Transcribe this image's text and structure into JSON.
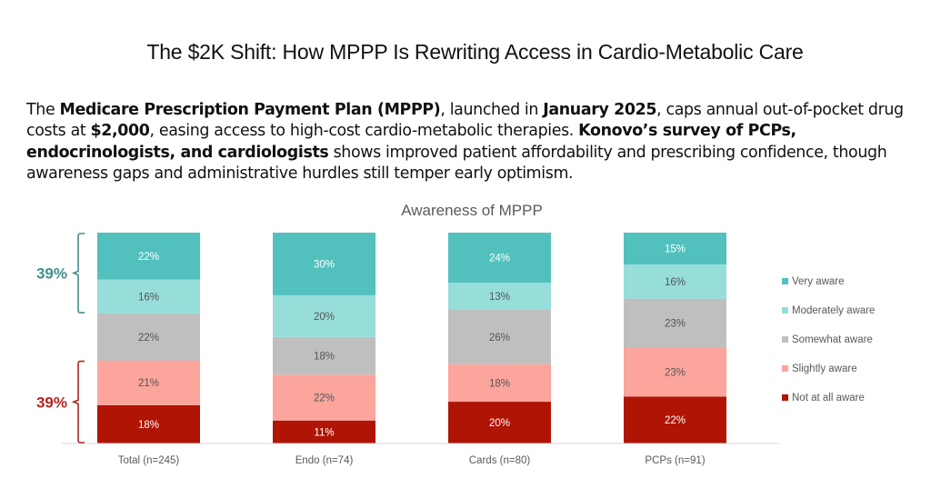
{
  "page": {
    "title": "The $2K Shift: How MPPP Is Rewriting Access in Cardio-Metabolic Care",
    "intro_segments": [
      {
        "text": "The ",
        "bold": false
      },
      {
        "text": "Medicare Prescription Payment Plan (MPPP)",
        "bold": true
      },
      {
        "text": ", launched in ",
        "bold": false
      },
      {
        "text": "January 2025",
        "bold": true
      },
      {
        "text": ", caps annual out-of-pocket drug costs at ",
        "bold": false
      },
      {
        "text": "$2,000",
        "bold": true
      },
      {
        "text": ", easing access to high-cost cardio-metabolic therapies. ",
        "bold": false
      },
      {
        "text": "Konovo’s survey of PCPs, endocrinologists, and cardiologists",
        "bold": true
      },
      {
        "text": " shows improved patient affordability and prescribing confidence, though awareness gaps and administrative hurdles still temper early optimism.",
        "bold": false
      }
    ]
  },
  "chart_data": {
    "type": "bar",
    "stacked": true,
    "normalized_percent": true,
    "title": "Awareness of MPPP",
    "xlabel": "",
    "ylabel": "",
    "ylim": [
      0,
      100
    ],
    "grid": false,
    "legend_position": "right",
    "categories": [
      "Total (n=245)",
      "Endo (n=74)",
      "Cards (n=80)",
      "PCPs (n=91)"
    ],
    "series": [
      {
        "name": "Not at all aware",
        "color": "#B01404",
        "label_color": "#ffffff",
        "values": [
          18,
          11,
          20,
          22
        ]
      },
      {
        "name": "Slightly aware",
        "color": "#FBA59C",
        "label_color": "#555555",
        "values": [
          21,
          22,
          18,
          23
        ]
      },
      {
        "name": "Somewhat aware",
        "color": "#BFBFBF",
        "label_color": "#555555",
        "values": [
          22,
          18,
          26,
          23
        ]
      },
      {
        "name": "Moderately aware",
        "color": "#97DDDA",
        "label_color": "#555555",
        "values": [
          16,
          20,
          13,
          16
        ]
      },
      {
        "name": "Very aware",
        "color": "#52C1BE",
        "label_color": "#ffffff",
        "values": [
          22,
          30,
          24,
          15
        ]
      }
    ],
    "legend_order": [
      "Very aware",
      "Moderately aware",
      "Somewhat aware",
      "Slightly aware",
      "Not at all aware"
    ],
    "value_suffix": "%",
    "annotations": [
      {
        "text": "39%",
        "color": "#3F8F8D",
        "applies_to": "Total (n=245)",
        "series_span": [
          "Moderately aware",
          "Very aware"
        ],
        "meaning": "Very + Moderately aware"
      },
      {
        "text": "39%",
        "color": "#B3261E",
        "applies_to": "Total (n=245)",
        "series_span": [
          "Not at all aware",
          "Slightly aware"
        ],
        "meaning": "Slightly + Not at all aware"
      }
    ]
  }
}
